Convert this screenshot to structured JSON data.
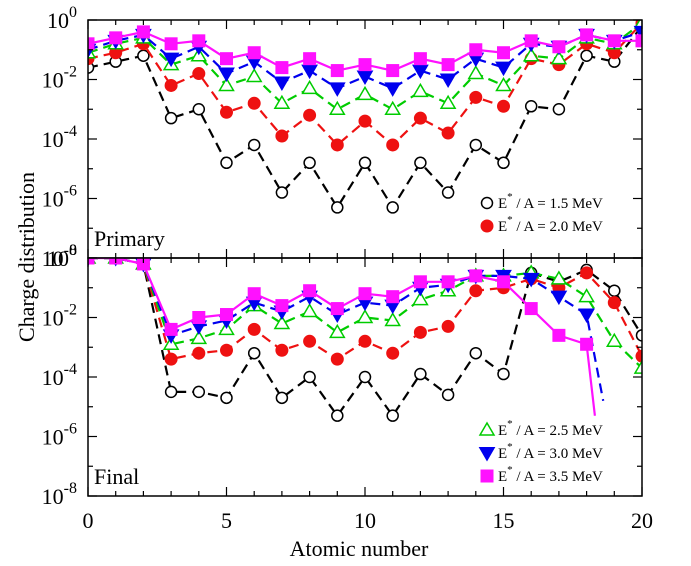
{
  "chart_data": {
    "type": "line",
    "xlabel": "Atomic number",
    "ylabel": "Charge distribution",
    "xlim": [
      0,
      20
    ],
    "x_ticks": [
      "0",
      "5",
      "10",
      "15",
      "20"
    ],
    "y_scale": "log",
    "y_ticks": [
      {
        "base": "10",
        "exp": "0"
      },
      {
        "base": "10",
        "exp": "-2"
      },
      {
        "base": "10",
        "exp": "-4"
      },
      {
        "base": "10",
        "exp": "-6"
      },
      {
        "base": "10",
        "exp": "-8"
      }
    ],
    "legend_unit_prefix": "E",
    "legend_unit_suffix": " / A = ",
    "panels": [
      {
        "label": "Primary",
        "ylim_log10": [
          -8,
          0
        ],
        "series": [
          {
            "name": "1.5 MeV",
            "color": "#000000",
            "marker": "open-circle",
            "x": [
              0,
              1,
              2,
              3,
              4,
              5,
              6,
              7,
              8,
              9,
              10,
              11,
              12,
              13,
              14,
              15,
              16,
              17,
              18,
              19,
              20
            ],
            "log10y": [
              -1.6,
              -1.4,
              -1.2,
              -3.3,
              -3.0,
              -4.8,
              -4.2,
              -5.8,
              -4.8,
              -6.3,
              -4.8,
              -6.3,
              -4.8,
              -5.8,
              -4.2,
              -4.8,
              -2.9,
              -3.0,
              -1.2,
              -1.4,
              -0.2
            ]
          },
          {
            "name": "2.0 MeV",
            "color": "#ee1111",
            "marker": "filled-circle",
            "x": [
              0,
              1,
              2,
              3,
              4,
              5,
              6,
              7,
              8,
              9,
              10,
              11,
              12,
              13,
              14,
              15,
              16,
              17,
              18,
              19,
              20
            ],
            "log10y": [
              -1.3,
              -1.1,
              -0.8,
              -2.2,
              -1.8,
              -3.1,
              -2.8,
              -3.9,
              -3.2,
              -4.2,
              -3.4,
              -4.2,
              -3.3,
              -3.8,
              -2.6,
              -2.9,
              -1.3,
              -1.5,
              -0.8,
              -1.1,
              -0.1
            ]
          },
          {
            "name": "2.5 MeV",
            "color": "#00cc00",
            "marker": "open-triangle",
            "x": [
              0,
              1,
              2,
              3,
              4,
              5,
              6,
              7,
              8,
              9,
              10,
              11,
              12,
              13,
              14,
              15,
              16,
              17,
              18,
              19,
              20
            ],
            "log10y": [
              -1.1,
              -0.8,
              -0.6,
              -1.5,
              -1.2,
              -2.2,
              -1.9,
              -2.8,
              -2.3,
              -3.0,
              -2.5,
              -3.0,
              -2.4,
              -2.8,
              -1.8,
              -2.2,
              -1.2,
              -1.3,
              -0.6,
              -0.8,
              -0.1
            ]
          },
          {
            "name": "3.0 MeV",
            "color": "#0000ee",
            "marker": "filled-triangle-down",
            "x": [
              0,
              1,
              2,
              3,
              4,
              5,
              6,
              7,
              8,
              9,
              10,
              11,
              12,
              13,
              14,
              15,
              16,
              17,
              18,
              19,
              20
            ],
            "log10y": [
              -1.0,
              -0.7,
              -0.5,
              -1.3,
              -0.9,
              -1.8,
              -1.4,
              -2.1,
              -1.7,
              -2.3,
              -1.9,
              -2.3,
              -1.7,
              -2.0,
              -1.3,
              -1.6,
              -0.8,
              -0.9,
              -0.5,
              -0.7,
              -0.4
            ]
          },
          {
            "name": "3.5 MeV",
            "color": "#ff11ff",
            "marker": "filled-square",
            "x": [
              0,
              1,
              2,
              3,
              4,
              5,
              6,
              7,
              8,
              9,
              10,
              11,
              12,
              13,
              14,
              15,
              16,
              17,
              18,
              19,
              20
            ],
            "log10y": [
              -0.8,
              -0.6,
              -0.4,
              -0.8,
              -0.7,
              -1.3,
              -1.1,
              -1.6,
              -1.3,
              -1.7,
              -1.5,
              -1.7,
              -1.3,
              -1.5,
              -1.0,
              -1.1,
              -0.7,
              -0.9,
              -0.5,
              -0.7,
              -0.7
            ]
          }
        ],
        "legend": [
          "1.5 MeV",
          "2.0 MeV"
        ]
      },
      {
        "label": "Final",
        "ylim_log10": [
          -8,
          0
        ],
        "series": [
          {
            "name": "1.5 MeV",
            "color": "#000000",
            "marker": "open-circle",
            "x": [
              0,
              1,
              2,
              3,
              4,
              5,
              6,
              7,
              8,
              9,
              10,
              11,
              12,
              13,
              14,
              15,
              16,
              17,
              18,
              19,
              20
            ],
            "log10y": [
              0,
              0,
              -0.2,
              -4.5,
              -4.5,
              -4.7,
              -3.2,
              -4.7,
              -4.0,
              -5.3,
              -4.0,
              -5.3,
              -3.9,
              -4.6,
              -3.2,
              -3.9,
              -0.5,
              -0.8,
              -0.4,
              -1.1,
              -2.6
            ]
          },
          {
            "name": "2.0 MeV",
            "color": "#ee1111",
            "marker": "filled-circle",
            "x": [
              0,
              1,
              2,
              3,
              4,
              5,
              6,
              7,
              8,
              9,
              10,
              11,
              12,
              13,
              14,
              15,
              16,
              17,
              18,
              19,
              20
            ],
            "log10y": [
              0,
              0,
              -0.2,
              -3.4,
              -3.2,
              -3.1,
              -2.4,
              -3.1,
              -2.8,
              -3.4,
              -2.8,
              -3.2,
              -2.5,
              -2.3,
              -1.1,
              -1.0,
              -0.7,
              -1.0,
              -0.5,
              -1.5,
              -3.3
            ]
          },
          {
            "name": "2.5 MeV",
            "color": "#00cc00",
            "marker": "open-triangle",
            "x": [
              0,
              1,
              2,
              3,
              4,
              5,
              6,
              7,
              8,
              9,
              10,
              11,
              12,
              13,
              14,
              15,
              16,
              17,
              18,
              19,
              20
            ],
            "log10y": [
              0,
              0,
              -0.2,
              -2.9,
              -2.7,
              -2.4,
              -1.6,
              -2.2,
              -1.8,
              -2.5,
              -2.0,
              -2.1,
              -1.4,
              -1.1,
              -0.6,
              -0.6,
              -0.5,
              -0.7,
              -1.3,
              -2.8,
              -3.7
            ]
          },
          {
            "name": "3.0 MeV",
            "color": "#0000ee",
            "marker": "filled-triangle-down",
            "x": [
              0,
              1,
              2,
              3,
              4,
              5,
              6,
              7,
              8,
              9,
              10,
              11,
              12,
              13,
              14,
              15,
              16,
              17,
              18
            ],
            "extra_x": [
              18.6
            ],
            "extra_log10y": [
              -4.8
            ],
            "log10y": [
              0,
              0,
              -0.2,
              -2.6,
              -2.3,
              -2.1,
              -1.5,
              -1.8,
              -1.3,
              -1.9,
              -1.5,
              -1.6,
              -1.0,
              -0.9,
              -0.6,
              -0.6,
              -0.7,
              -1.3,
              -1.9
            ]
          },
          {
            "name": "3.5 MeV",
            "color": "#ff11ff",
            "marker": "filled-square",
            "x": [
              0,
              1,
              2,
              3,
              4,
              5,
              6,
              7,
              8,
              9,
              10,
              11,
              12,
              13,
              14,
              15,
              16,
              17,
              18
            ],
            "extra_x": [
              18.3
            ],
            "extra_log10y": [
              -5.3
            ],
            "log10y": [
              0,
              0,
              -0.2,
              -2.4,
              -2.0,
              -1.9,
              -1.2,
              -1.6,
              -1.1,
              -1.7,
              -1.2,
              -1.3,
              -0.8,
              -0.8,
              -0.6,
              -0.8,
              -1.7,
              -2.6,
              -2.9
            ]
          }
        ],
        "legend": [
          "2.5 MeV",
          "3.0 MeV",
          "3.5 MeV"
        ]
      }
    ]
  }
}
